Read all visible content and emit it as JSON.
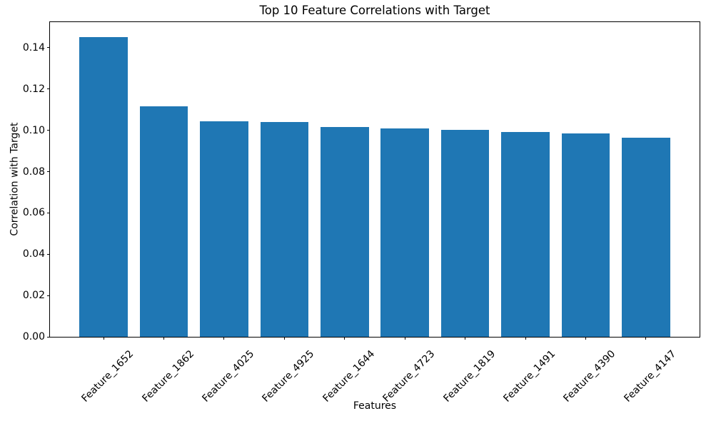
{
  "chart_data": {
    "type": "bar",
    "title": "Top 10 Feature Correlations with Target",
    "xlabel": "Features",
    "ylabel": "Correlation with Target",
    "categories": [
      "Feature_1652",
      "Feature_1862",
      "Feature_4025",
      "Feature_4925",
      "Feature_1644",
      "Feature_4723",
      "Feature_1819",
      "Feature_1491",
      "Feature_4390",
      "Feature_4147"
    ],
    "values": [
      0.1453,
      0.1115,
      0.1042,
      0.1039,
      0.1015,
      0.1009,
      0.1001,
      0.0992,
      0.0986,
      0.0965
    ],
    "bar_color": "#1f77b4",
    "yticks": [
      0.0,
      0.02,
      0.04,
      0.06,
      0.08,
      0.1,
      0.12,
      0.14
    ],
    "ytick_labels": [
      "0.00",
      "0.02",
      "0.04",
      "0.06",
      "0.08",
      "0.10",
      "0.12",
      "0.14"
    ],
    "ylim": [
      0,
      0.1524
    ],
    "xlim": [
      -0.89,
      9.89
    ],
    "bar_width": 0.8,
    "xtick_rotation_deg": 45,
    "grid": false,
    "legend": false
  }
}
